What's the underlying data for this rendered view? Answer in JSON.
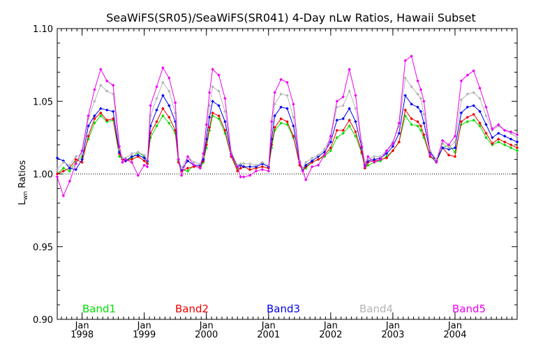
{
  "chart_data": {
    "type": "line",
    "title": "SeaWiFS(SR05)/SeaWiFS(SR041) 4-Day nLw Ratios, Hawaii Subset",
    "ylabel_main": "L",
    "ylabel_sub": "wn",
    "ylabel_rest": " Ratios",
    "xlabel": "",
    "xlim": [
      1997.6,
      2005.0
    ],
    "ylim": [
      0.9,
      1.1
    ],
    "yticks": [
      "0.90",
      "0.95",
      "1.00",
      "1.05",
      "1.10"
    ],
    "ytick_values": [
      0.9,
      0.95,
      1.0,
      1.05,
      1.1
    ],
    "xticks": [
      {
        "top": "Jan",
        "bottom": "1998",
        "x": 1998.0
      },
      {
        "top": "Jan",
        "bottom": "1999",
        "x": 1999.0
      },
      {
        "top": "Jan",
        "bottom": "2000",
        "x": 2000.0
      },
      {
        "top": "Jan",
        "bottom": "2001",
        "x": 2001.0
      },
      {
        "top": "Jan",
        "bottom": "2002",
        "x": 2002.0
      },
      {
        "top": "Jan",
        "bottom": "2003",
        "x": 2003.0
      },
      {
        "top": "Jan",
        "bottom": "2004",
        "x": 2004.0
      }
    ],
    "reference_line": 1.0,
    "legend_position": "bottom",
    "x": [
      1997.6,
      1997.7,
      1997.8,
      1997.9,
      1998.0,
      1998.1,
      1998.2,
      1998.3,
      1998.4,
      1998.5,
      1998.6,
      1998.65,
      1998.7,
      1998.8,
      1998.9,
      1999.0,
      1999.05,
      1999.1,
      1999.2,
      1999.3,
      1999.4,
      1999.5,
      1999.55,
      1999.6,
      1999.7,
      1999.8,
      1999.9,
      1999.95,
      2000.0,
      2000.05,
      2000.1,
      2000.2,
      2000.3,
      2000.4,
      2000.5,
      2000.55,
      2000.6,
      2000.7,
      2000.8,
      2000.9,
      2001.0,
      2001.05,
      2001.1,
      2001.2,
      2001.3,
      2001.4,
      2001.5,
      2001.55,
      2001.6,
      2001.7,
      2001.8,
      2001.9,
      2002.0,
      2002.1,
      2002.2,
      2002.3,
      2002.4,
      2002.5,
      2002.55,
      2002.6,
      2002.7,
      2002.8,
      2002.9,
      2003.0,
      2003.1,
      2003.2,
      2003.3,
      2003.4,
      2003.45,
      2003.5,
      2003.6,
      2003.7,
      2003.8,
      2003.9,
      2004.0,
      2004.1,
      2004.2,
      2004.3,
      2004.4,
      2004.5,
      2004.6,
      2004.7,
      2004.8,
      2004.9,
      2005.0
    ],
    "series": [
      {
        "name": "Band1",
        "color": "#00dd00",
        "values": [
          1.0,
          1.004,
          1.002,
          1.008,
          1.012,
          1.024,
          1.035,
          1.04,
          1.036,
          1.037,
          1.012,
          1.01,
          1.009,
          1.011,
          1.015,
          1.012,
          1.008,
          1.025,
          1.033,
          1.04,
          1.035,
          1.028,
          1.009,
          1.003,
          1.002,
          1.006,
          1.004,
          1.008,
          1.018,
          1.03,
          1.04,
          1.038,
          1.028,
          1.012,
          1.004,
          1.004,
          1.005,
          1.003,
          1.004,
          1.005,
          1.004,
          1.018,
          1.03,
          1.035,
          1.034,
          1.025,
          1.008,
          1.003,
          1.004,
          1.008,
          1.01,
          1.012,
          1.016,
          1.025,
          1.028,
          1.033,
          1.026,
          1.014,
          1.004,
          1.006,
          1.008,
          1.009,
          1.012,
          1.016,
          1.022,
          1.04,
          1.034,
          1.033,
          1.03,
          1.025,
          1.012,
          1.008,
          1.018,
          1.02,
          1.015,
          1.034,
          1.036,
          1.037,
          1.033,
          1.025,
          1.02,
          1.022,
          1.02,
          1.018,
          1.016
        ]
      },
      {
        "name": "Band2",
        "color": "#ee0000",
        "values": [
          1.0,
          1.002,
          1.004,
          1.01,
          1.008,
          1.026,
          1.038,
          1.042,
          1.037,
          1.038,
          1.014,
          1.01,
          1.009,
          1.01,
          1.012,
          1.009,
          1.007,
          1.028,
          1.036,
          1.045,
          1.039,
          1.03,
          1.008,
          1.002,
          1.004,
          1.005,
          1.005,
          1.009,
          1.02,
          1.032,
          1.042,
          1.04,
          1.03,
          1.012,
          1.002,
          1.004,
          1.005,
          1.003,
          1.004,
          1.005,
          1.004,
          1.02,
          1.032,
          1.038,
          1.036,
          1.026,
          1.006,
          1.002,
          1.005,
          1.008,
          1.01,
          1.013,
          1.018,
          1.03,
          1.03,
          1.037,
          1.029,
          1.015,
          1.004,
          1.008,
          1.009,
          1.01,
          1.011,
          1.016,
          1.022,
          1.044,
          1.038,
          1.036,
          1.033,
          1.027,
          1.012,
          1.01,
          1.018,
          1.013,
          1.012,
          1.036,
          1.039,
          1.041,
          1.035,
          1.028,
          1.021,
          1.024,
          1.022,
          1.02,
          1.018
        ]
      },
      {
        "name": "Band3",
        "color": "#0000ee",
        "values": [
          1.011,
          1.009,
          1.004,
          1.003,
          1.01,
          1.033,
          1.04,
          1.045,
          1.044,
          1.043,
          1.015,
          1.011,
          1.009,
          1.012,
          1.013,
          1.011,
          1.009,
          1.033,
          1.044,
          1.054,
          1.047,
          1.036,
          1.01,
          1.003,
          1.009,
          1.006,
          1.006,
          1.01,
          1.024,
          1.039,
          1.05,
          1.047,
          1.036,
          1.014,
          1.005,
          1.006,
          1.005,
          1.005,
          1.005,
          1.007,
          1.005,
          1.024,
          1.04,
          1.046,
          1.045,
          1.033,
          1.008,
          1.003,
          1.006,
          1.009,
          1.012,
          1.015,
          1.022,
          1.037,
          1.038,
          1.045,
          1.036,
          1.018,
          1.006,
          1.009,
          1.01,
          1.011,
          1.014,
          1.019,
          1.028,
          1.054,
          1.048,
          1.046,
          1.043,
          1.035,
          1.015,
          1.009,
          1.018,
          1.017,
          1.018,
          1.042,
          1.046,
          1.047,
          1.043,
          1.034,
          1.025,
          1.028,
          1.026,
          1.024,
          1.022
        ]
      },
      {
        "name": "Band4",
        "color": "#b4b4b4",
        "values": [
          1.003,
          1.008,
          1.006,
          1.012,
          1.014,
          1.038,
          1.05,
          1.061,
          1.057,
          1.055,
          1.017,
          1.011,
          1.011,
          1.014,
          1.015,
          1.013,
          1.01,
          1.04,
          1.052,
          1.063,
          1.057,
          1.042,
          1.011,
          1.004,
          1.012,
          1.008,
          1.007,
          1.012,
          1.029,
          1.047,
          1.06,
          1.057,
          1.043,
          1.015,
          1.006,
          1.007,
          1.007,
          1.007,
          1.006,
          1.008,
          1.006,
          1.03,
          1.048,
          1.055,
          1.054,
          1.039,
          1.009,
          1.004,
          1.008,
          1.011,
          1.013,
          1.017,
          1.025,
          1.046,
          1.047,
          1.057,
          1.045,
          1.021,
          1.008,
          1.01,
          1.012,
          1.012,
          1.016,
          1.022,
          1.033,
          1.066,
          1.06,
          1.055,
          1.052,
          1.041,
          1.016,
          1.01,
          1.021,
          1.018,
          1.022,
          1.051,
          1.055,
          1.056,
          1.052,
          1.04,
          1.03,
          1.033,
          1.03,
          1.028,
          1.025
        ]
      },
      {
        "name": "Band5",
        "color": "#ee00ee",
        "values": [
          0.998,
          0.985,
          0.995,
          1.007,
          1.016,
          1.04,
          1.058,
          1.072,
          1.064,
          1.061,
          1.019,
          1.008,
          1.01,
          1.008,
          0.999,
          1.006,
          1.005,
          1.047,
          1.06,
          1.073,
          1.066,
          1.049,
          1.01,
          0.999,
          1.012,
          1.006,
          1.004,
          1.014,
          1.034,
          1.056,
          1.072,
          1.068,
          1.052,
          1.013,
          1.005,
          0.998,
          0.998,
          0.999,
          1.002,
          1.003,
          1.002,
          1.036,
          1.056,
          1.065,
          1.063,
          1.048,
          1.008,
          1.002,
          0.996,
          1.005,
          1.006,
          1.013,
          1.026,
          1.05,
          1.053,
          1.072,
          1.054,
          1.019,
          1.005,
          1.012,
          1.008,
          1.01,
          1.016,
          1.021,
          1.035,
          1.078,
          1.081,
          1.064,
          1.058,
          1.05,
          1.013,
          1.008,
          1.023,
          1.02,
          1.026,
          1.064,
          1.068,
          1.071,
          1.059,
          1.046,
          1.031,
          1.034,
          1.03,
          1.029,
          1.027
        ]
      }
    ]
  }
}
